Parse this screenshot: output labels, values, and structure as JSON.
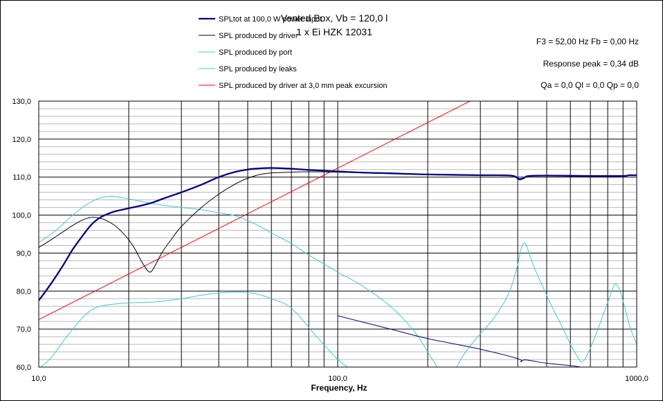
{
  "window": {
    "title_line1": "Vented Box, Vb = 120,0 l",
    "title_line2": "1 x Ei HZK 12031"
  },
  "info": {
    "f3_fb": "F3 = 52,00  Hz   Fb = 0,00  Hz",
    "response_peak": "Response peak = 0,34 dB",
    "q_values": "Qa = 0,0   Ql = 0,0   Qp = 0,0"
  },
  "chart_data": {
    "type": "line",
    "xscale": "log",
    "xlim": [
      10,
      1000
    ],
    "ylim": [
      60,
      130
    ],
    "xlabel": "Frequency, Hz",
    "ylabel": "",
    "grid": true,
    "legend_position": "top",
    "y_ticks": [
      "60,0",
      "70,0",
      "80,0",
      "90,0",
      "100,0",
      "110,0",
      "120,0",
      "130,0"
    ],
    "x_ticks": [
      "10,0",
      "100,0",
      "1000,0"
    ],
    "series": [
      {
        "name": "SPLtot at 100,0 W power input",
        "color": "#000080",
        "width": 2.3,
        "points": [
          [
            10,
            77.5
          ],
          [
            11,
            82
          ],
          [
            12,
            86.5
          ],
          [
            13,
            91
          ],
          [
            14,
            94.5
          ],
          [
            15,
            97.5
          ],
          [
            16,
            99.3
          ],
          [
            17,
            100.3
          ],
          [
            18,
            101
          ],
          [
            20,
            101.8
          ],
          [
            22,
            102.5
          ],
          [
            24,
            103.3
          ],
          [
            26,
            104.3
          ],
          [
            30,
            106
          ],
          [
            35,
            108
          ],
          [
            40,
            110
          ],
          [
            45,
            111.3
          ],
          [
            50,
            112
          ],
          [
            55,
            112.3
          ],
          [
            60,
            112.4
          ],
          [
            70,
            112.2
          ],
          [
            80,
            111.9
          ],
          [
            100,
            111.5
          ],
          [
            120,
            111.2
          ],
          [
            150,
            111
          ],
          [
            200,
            110.7
          ],
          [
            300,
            110.5
          ],
          [
            380,
            110.4
          ],
          [
            405,
            109.4
          ],
          [
            420,
            109.8
          ],
          [
            435,
            110.3
          ],
          [
            500,
            110.4
          ],
          [
            700,
            110.3
          ],
          [
            900,
            110.3
          ],
          [
            940,
            110.5
          ],
          [
            1000,
            110.5
          ]
        ]
      },
      {
        "name": "SPL produced by driver",
        "color": "#000000",
        "width": 1,
        "points": [
          [
            10,
            91.5
          ],
          [
            11,
            93.5
          ],
          [
            12,
            95.5
          ],
          [
            13,
            97.3
          ],
          [
            14,
            98.7
          ],
          [
            15,
            99.4
          ],
          [
            16,
            99.2
          ],
          [
            17,
            98.4
          ],
          [
            18,
            97.2
          ],
          [
            19,
            95.5
          ],
          [
            20,
            93.5
          ],
          [
            21,
            91
          ],
          [
            22,
            88
          ],
          [
            23,
            85.6
          ],
          [
            23.5,
            85
          ],
          [
            24,
            85.5
          ],
          [
            25,
            88
          ],
          [
            26,
            90.5
          ],
          [
            28,
            94
          ],
          [
            30,
            97
          ],
          [
            35,
            102
          ],
          [
            40,
            105.5
          ],
          [
            45,
            108
          ],
          [
            50,
            109.7
          ],
          [
            55,
            110.7
          ],
          [
            60,
            111.1
          ],
          [
            70,
            111.3
          ],
          [
            80,
            111.4
          ],
          [
            100,
            111.3
          ],
          [
            150,
            110.9
          ],
          [
            200,
            110.7
          ],
          [
            300,
            110.5
          ],
          [
            380,
            110.4
          ],
          [
            405,
            109.6
          ],
          [
            420,
            109.9
          ],
          [
            435,
            110.3
          ],
          [
            500,
            110.4
          ],
          [
            700,
            110.3
          ],
          [
            1000,
            110.5
          ]
        ]
      },
      {
        "name": "SPL produced by port",
        "color": "#40C8D0",
        "width": 1,
        "points": [
          [
            10,
            92.8
          ],
          [
            11,
            95
          ],
          [
            12,
            97.5
          ],
          [
            13,
            100
          ],
          [
            14,
            102
          ],
          [
            15,
            103.5
          ],
          [
            16,
            104.5
          ],
          [
            17,
            104.9
          ],
          [
            18,
            104.9
          ],
          [
            20,
            104.3
          ],
          [
            22,
            103.6
          ],
          [
            25,
            102.8
          ],
          [
            30,
            102
          ],
          [
            35,
            101.4
          ],
          [
            40,
            100.6
          ],
          [
            45,
            99.9
          ],
          [
            50,
            98.5
          ],
          [
            55,
            97
          ],
          [
            60,
            95.3
          ],
          [
            70,
            92.5
          ],
          [
            80,
            89.5
          ],
          [
            100,
            85
          ],
          [
            120,
            81.5
          ],
          [
            150,
            76
          ],
          [
            180,
            69.5
          ],
          [
            200,
            64
          ],
          [
            215,
            60
          ]
        ]
      },
      {
        "name": "SPL produced by leaks",
        "color": "#40C8D0",
        "width": 1,
        "points": [
          [
            10,
            59.5
          ],
          [
            11,
            62.5
          ],
          [
            12,
            66.5
          ],
          [
            13,
            70
          ],
          [
            14,
            73
          ],
          [
            15,
            75
          ],
          [
            16,
            76
          ],
          [
            18,
            76.6
          ],
          [
            20,
            76.9
          ],
          [
            25,
            77.2
          ],
          [
            30,
            78
          ],
          [
            35,
            78.9
          ],
          [
            40,
            79.5
          ],
          [
            45,
            79.7
          ],
          [
            50,
            79.6
          ],
          [
            55,
            79
          ],
          [
            60,
            78
          ],
          [
            70,
            75.5
          ],
          [
            85,
            68
          ],
          [
            100,
            62
          ],
          [
            108,
            60
          ]
        ],
        "points_high": [
          [
            250,
            60
          ],
          [
            260,
            62.5
          ],
          [
            280,
            66
          ],
          [
            300,
            68.8
          ],
          [
            330,
            72.5
          ],
          [
            360,
            77
          ],
          [
            380,
            81
          ],
          [
            400,
            87
          ],
          [
            410,
            91
          ],
          [
            420,
            92.7
          ],
          [
            430,
            91.5
          ],
          [
            450,
            87
          ],
          [
            480,
            82
          ],
          [
            520,
            76
          ],
          [
            560,
            71
          ],
          [
            600,
            66
          ],
          [
            630,
            63
          ],
          [
            650,
            61.5
          ],
          [
            670,
            62
          ],
          [
            700,
            65
          ],
          [
            750,
            71
          ],
          [
            800,
            77
          ],
          [
            840,
            81.5
          ],
          [
            860,
            81.5
          ],
          [
            880,
            80
          ],
          [
            910,
            76
          ],
          [
            950,
            70.5
          ],
          [
            1000,
            66
          ]
        ]
      },
      {
        "name": "SPL produced by driver at 3,0 mm peak excursion",
        "color": "#FF0000",
        "width": 1,
        "points": [
          [
            10,
            72.5
          ],
          [
            20,
            84.5
          ],
          [
            40,
            96.5
          ],
          [
            80,
            108.5
          ],
          [
            160,
            120.5
          ],
          [
            320,
            132.5
          ]
        ]
      },
      {
        "name": "",
        "color": "#000080",
        "width": 1,
        "points": [
          [
            100,
            73.5
          ],
          [
            150,
            70
          ],
          [
            200,
            67.5
          ],
          [
            300,
            64.7
          ],
          [
            400,
            62.2
          ],
          [
            410,
            61.4
          ],
          [
            420,
            61.9
          ],
          [
            450,
            61.6
          ],
          [
            500,
            61
          ],
          [
            600,
            60.4
          ],
          [
            650,
            60
          ]
        ]
      }
    ]
  }
}
